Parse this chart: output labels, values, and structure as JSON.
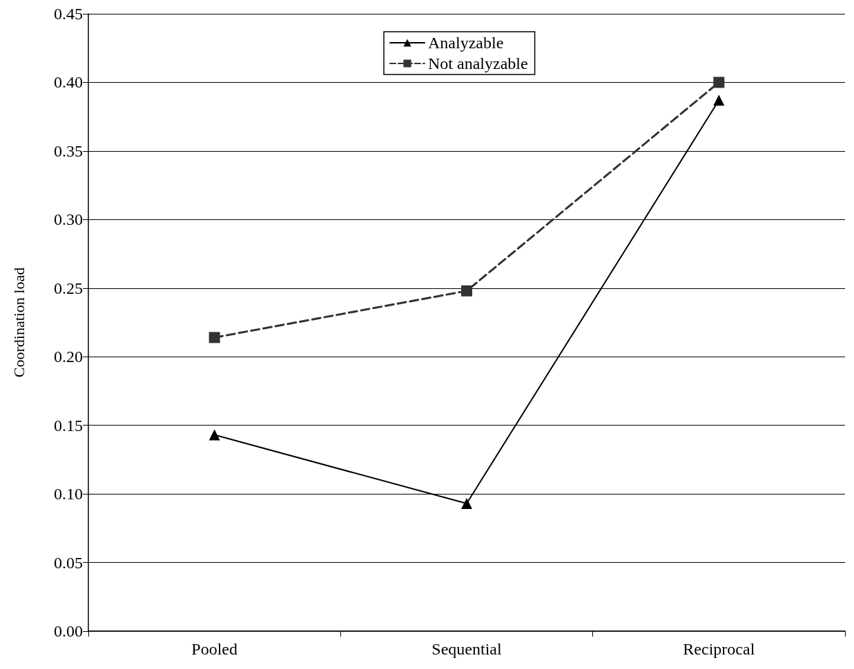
{
  "chart_data": {
    "type": "line",
    "ylabel": "Coordination load",
    "categories": [
      "Pooled",
      "Sequential",
      "Reciprocal"
    ],
    "series": [
      {
        "name": "Analyzable",
        "color": "#000000",
        "marker": "triangle",
        "line_style": "solid",
        "values": [
          0.143,
          0.093,
          0.387
        ]
      },
      {
        "name": "Not analyzable",
        "color": "#333333",
        "marker": "square",
        "line_style": "dashed",
        "values": [
          0.214,
          0.248,
          0.4
        ]
      }
    ],
    "ylim": [
      0,
      0.45
    ],
    "yticks": [
      {
        "value": 0,
        "label": "0.00"
      },
      {
        "value": 0.05,
        "label": "0.05"
      },
      {
        "value": 0.1,
        "label": "0.10"
      },
      {
        "value": 0.15,
        "label": "0.15"
      },
      {
        "value": 0.2,
        "label": "0.20"
      },
      {
        "value": 0.25,
        "label": "0.25"
      },
      {
        "value": 0.3,
        "label": "0.30"
      },
      {
        "value": 0.35,
        "label": "0.35"
      },
      {
        "value": 0.4,
        "label": "0.40"
      },
      {
        "value": 0.45,
        "label": "0.45"
      }
    ],
    "grid": "y",
    "legend": "top"
  }
}
